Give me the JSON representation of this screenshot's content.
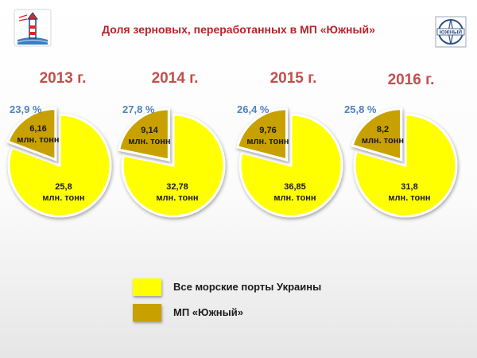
{
  "title": "Доля зерновых, переработанных в МП «Южный»",
  "logos": {
    "left": "port-lighthouse-logo-icon",
    "right_text": "ЮЖНЫЙ"
  },
  "colors": {
    "ukraine": "#ffff00",
    "yuzhny": "#c8a000",
    "year_text": "#c0504d",
    "pct_text": "#4f81bd"
  },
  "chart_data": {
    "type": "pie",
    "title": "Доля зерновых, переработанных в МП «Южный»",
    "legend": [
      {
        "label": "Все морские порты Украины",
        "color": "#ffff00"
      },
      {
        "label": "МП «Южный»",
        "color": "#c8a000"
      }
    ],
    "legend_placement": "bottom",
    "pies": [
      {
        "year": "2013 г.",
        "share": "23,9 %",
        "slices": [
          {
            "name": "Все морские порты Украины",
            "value": 25.8,
            "label": "25,8",
            "unit": "млн. тонн"
          },
          {
            "name": "МП «Южный»",
            "value": 6.16,
            "label": "6,16",
            "unit": "млн. тонн"
          }
        ]
      },
      {
        "year": "2014 г.",
        "share": "27,8 %",
        "slices": [
          {
            "name": "Все морские порты Украины",
            "value": 32.78,
            "label": "32,78",
            "unit": "млн. тонн"
          },
          {
            "name": "МП «Южный»",
            "value": 9.14,
            "label": "9,14",
            "unit": "млн. тонн"
          }
        ]
      },
      {
        "year": "2015 г.",
        "share": "26,4 %",
        "slices": [
          {
            "name": "Все морские порты Украины",
            "value": 36.85,
            "label": "36,85",
            "unit": "млн. тонн"
          },
          {
            "name": "МП «Южный»",
            "value": 9.76,
            "label": "9,76",
            "unit": "млн. тонн"
          }
        ]
      },
      {
        "year": "2016 г.",
        "share": "25,8 %",
        "slices": [
          {
            "name": "Все морские порты Украины",
            "value": 31.8,
            "label": "31,8",
            "unit": "млн. тонн"
          },
          {
            "name": "МП «Южный»",
            "value": 8.2,
            "label": "8,2",
            "unit": "млн. тонн"
          }
        ]
      }
    ]
  }
}
